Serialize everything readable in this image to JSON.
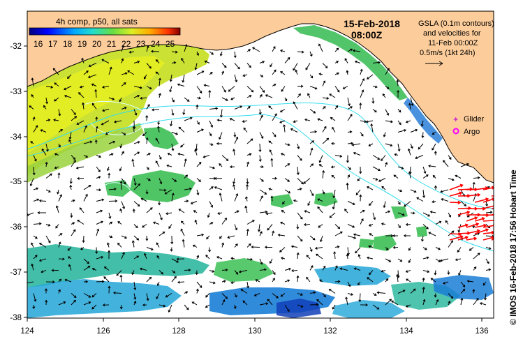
{
  "map": {
    "colorbar_title": "4h comp, p50, all sats",
    "colorbar_ticks": [
      "16",
      "17",
      "18",
      "19",
      "20",
      "21",
      "22",
      "23",
      "24",
      "25"
    ],
    "date": "15-Feb-2018",
    "time": "08:00Z",
    "gsla_info": [
      "GSLA (0.1m contours)",
      "and velocities for",
      "11-Feb 00:00Z",
      "0.5m/s (1kt 24h)"
    ],
    "legend": {
      "glider": "Glider",
      "argo": "Argo"
    },
    "glider_color": "#cc33cc",
    "argo_color": "#ff00ff",
    "x_ticks": [
      "124",
      "126",
      "128",
      "130",
      "132",
      "134",
      "136"
    ],
    "y_ticks": [
      "-32",
      "-33",
      "-34",
      "-35",
      "-36",
      "-37",
      "-38"
    ],
    "side_text": "© IMOS 16-Feb-2018 17:56 Hobart Time",
    "land_color": "#fccc9a",
    "contour_color": "#33ddee",
    "velocity_arrow_color": "#ff0000"
  }
}
